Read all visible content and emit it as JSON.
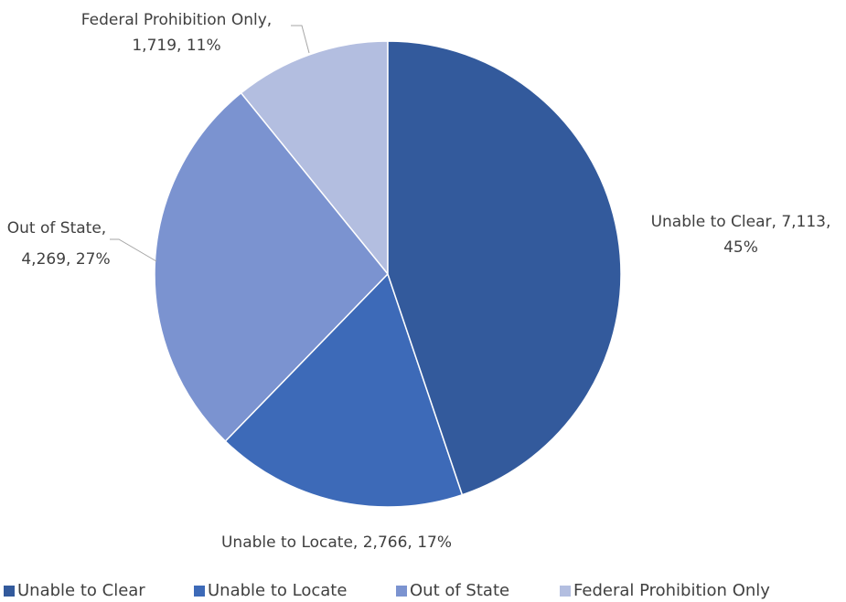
{
  "chart_data": {
    "type": "pie",
    "categories": [
      "Unable to Clear",
      "Unable to Locate",
      "Out of State",
      "Federal Prohibition Only"
    ],
    "values": [
      7113,
      2766,
      4269,
      1719
    ],
    "value_labels": [
      [
        "Unable to Clear, 7,113,",
        "45%"
      ],
      [
        "Unable to Locate, 2,766, 17%"
      ],
      [
        "Out of State,",
        "4,269, 27%"
      ],
      [
        "Federal Prohibition Only,",
        "1,719, 11%"
      ]
    ],
    "colors": [
      "#335a9c",
      "#3d6ab8",
      "#7b93d0",
      "#b3bee0"
    ],
    "legend": "bottom"
  }
}
